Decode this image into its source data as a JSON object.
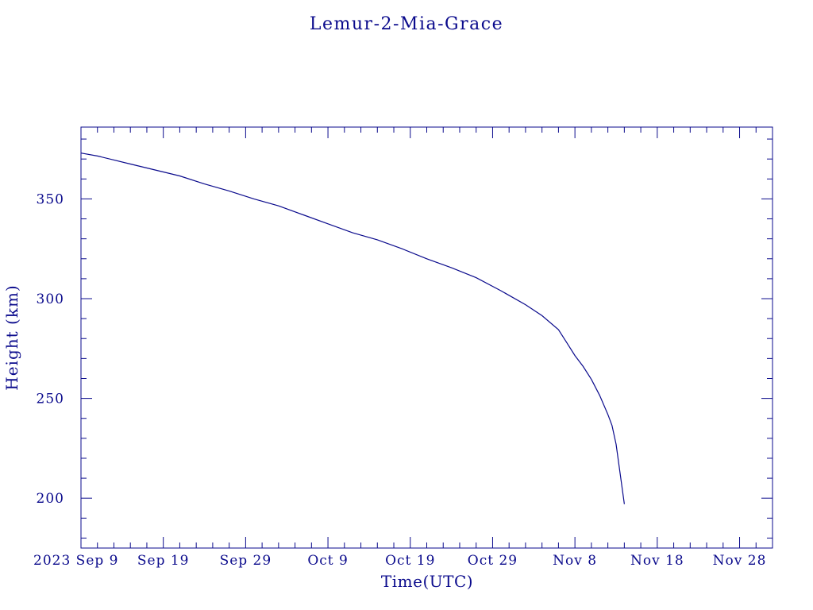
{
  "colors": {
    "ink": "#0a0a8c",
    "background": "#ffffff"
  },
  "chart_data": {
    "type": "line",
    "title": "Lemur-2-Mia-Grace",
    "xlabel": "Time(UTC)",
    "ylabel": "Height (km)",
    "xlim": [
      "2023-09-09",
      "2023-12-02"
    ],
    "ylim": [
      175,
      386
    ],
    "x_tick_labels": [
      "2023 Sep  9",
      "Sep 19",
      "Sep 29",
      "Oct  9",
      "Oct 19",
      "Oct 29",
      "Nov  8",
      "Nov 18",
      "Nov 28"
    ],
    "x_ticks": [
      "2023-09-09",
      "2023-09-19",
      "2023-09-29",
      "2023-10-09",
      "2023-10-19",
      "2023-10-29",
      "2023-11-08",
      "2023-11-18",
      "2023-11-28"
    ],
    "y_ticks": [
      200,
      250,
      300,
      350
    ],
    "grid": false,
    "legend": "none",
    "series": [
      {
        "color": "#0a0a8c",
        "x": [
          "2023-09-09",
          "2023-09-11",
          "2023-09-13",
          "2023-09-15",
          "2023-09-17",
          "2023-09-19",
          "2023-09-21",
          "2023-09-24",
          "2023-09-27",
          "2023-09-30",
          "2023-10-03",
          "2023-10-06",
          "2023-10-09",
          "2023-10-12",
          "2023-10-15",
          "2023-10-18",
          "2023-10-21",
          "2023-10-24",
          "2023-10-27",
          "2023-10-30",
          "2023-11-02",
          "2023-11-04",
          "2023-11-06",
          "2023-11-07",
          "2023-11-08",
          "2023-11-09",
          "2023-11-10",
          "2023-11-11",
          "2023-11-12",
          "2023-11-12 12:00",
          "2023-11-13",
          "2023-11-13 12:00",
          "2023-11-14"
        ],
        "values": [
          373,
          371.5,
          369.5,
          367.5,
          365.5,
          363.5,
          361.5,
          357.5,
          354,
          350,
          346.5,
          342,
          337.5,
          333,
          329.5,
          325,
          320,
          315.5,
          310.5,
          304,
          297,
          291.5,
          284.5,
          278,
          271.5,
          266,
          259.5,
          251.5,
          242,
          236.5,
          227,
          212,
          197
        ]
      }
    ]
  }
}
